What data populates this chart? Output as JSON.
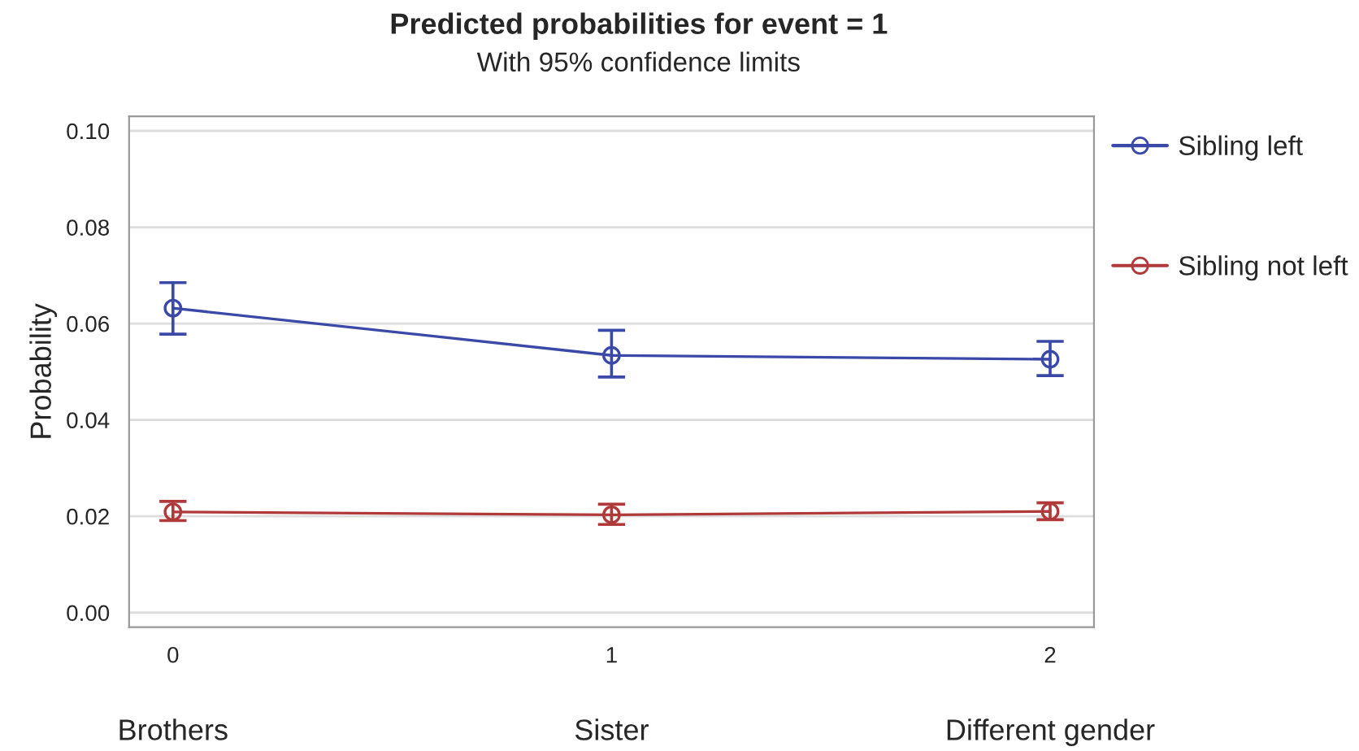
{
  "chart_data": {
    "type": "line",
    "title": "Predicted probabilities for event = 1",
    "subtitle": "With 95% confidence limits",
    "ylabel": "Probability",
    "x": [
      0,
      1,
      2
    ],
    "series": [
      {
        "name": "Sibling left",
        "color": "#3a48a8",
        "values": [
          0.0632,
          0.0534,
          0.0526
        ],
        "errors": [
          [
            0.0578,
            0.0685
          ],
          [
            0.0489,
            0.0586
          ],
          [
            0.0492,
            0.0563
          ]
        ]
      },
      {
        "name": "Sibling not left",
        "color": "#b03a3a",
        "values": [
          0.0209,
          0.0203,
          0.021
        ],
        "errors": [
          [
            0.0191,
            0.0231
          ],
          [
            0.0183,
            0.0225
          ],
          [
            0.0193,
            0.0228
          ]
        ]
      }
    ],
    "xlim": [
      -0.1,
      2.1
    ],
    "xticks": [
      0,
      1,
      2
    ],
    "ylim": [
      -0.003,
      0.103
    ],
    "yticks": [
      {
        "value": 0,
        "label": "0.00"
      },
      {
        "value": 0.02,
        "label": "0.02"
      },
      {
        "value": 0.04,
        "label": "0.04"
      },
      {
        "value": 0.06,
        "label": "0.06"
      },
      {
        "value": 0.08,
        "label": "0.08"
      },
      {
        "value": 0.1,
        "label": "0.10"
      }
    ],
    "annotations": [
      "Brothers",
      "Sister",
      "Different gender"
    ],
    "grid": "y",
    "legend": "right",
    "marker": "circle",
    "line_style": "solid"
  }
}
